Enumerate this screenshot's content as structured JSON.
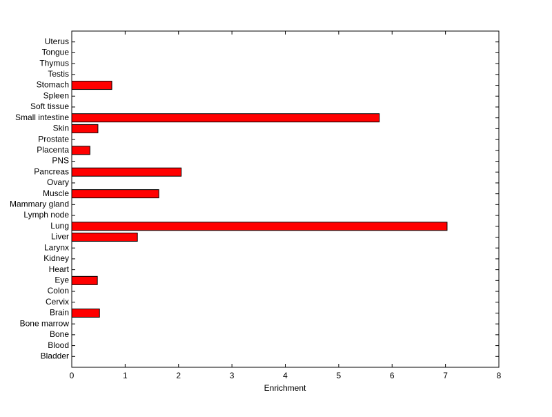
{
  "chart_data": {
    "type": "hbar",
    "xlabel": "Enrichment",
    "categories": [
      "Bladder",
      "Blood",
      "Bone",
      "Bone marrow",
      "Brain",
      "Cervix",
      "Colon",
      "Eye",
      "Heart",
      "Kidney",
      "Larynx",
      "Liver",
      "Lung",
      "Lymph node",
      "Mammary gland",
      "Muscle",
      "Ovary",
      "Pancreas",
      "PNS",
      "Placenta",
      "Prostate",
      "Skin",
      "Small intestine",
      "Soft tissue",
      "Spleen",
      "Stomach",
      "Testis",
      "Thymus",
      "Tongue",
      "Uterus"
    ],
    "values": [
      0,
      0,
      0,
      0,
      0.52,
      0,
      0,
      0.48,
      0,
      0,
      0,
      1.23,
      7.03,
      0,
      0,
      1.63,
      0,
      2.05,
      0,
      0.34,
      0,
      0.49,
      5.76,
      0,
      0,
      0.75,
      0,
      0,
      0,
      0
    ],
    "color": "#ff0000",
    "xlim": [
      0,
      8
    ],
    "xticks": [
      0,
      1,
      2,
      3,
      4,
      5,
      6,
      7,
      8
    ]
  }
}
